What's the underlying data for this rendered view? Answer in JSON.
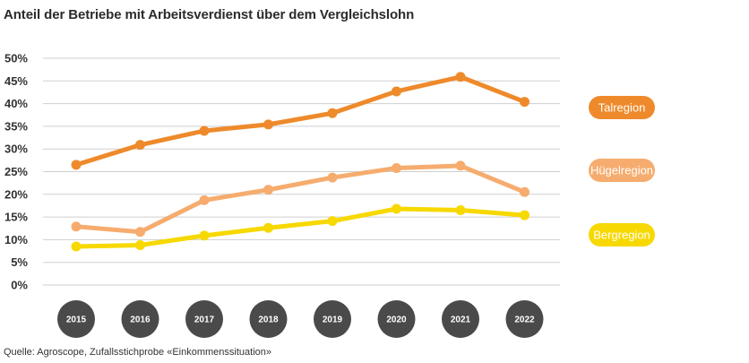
{
  "title": "Anteil der Betriebe mit Arbeitsverdienst über dem Vergleichslohn",
  "source": "Quelle: Agroscope, Zufallsstichprobe «Einkommenssituation»",
  "chart_data": {
    "type": "line",
    "title": "Anteil der Betriebe mit Arbeitsverdienst über dem Vergleichslohn",
    "xlabel": "",
    "ylabel": "",
    "categories": [
      "2015",
      "2016",
      "2017",
      "2018",
      "2019",
      "2020",
      "2021",
      "2022"
    ],
    "ylim": [
      0,
      50
    ],
    "yticks": [
      0,
      5,
      10,
      15,
      20,
      25,
      30,
      35,
      40,
      45,
      50
    ],
    "ytick_labels": [
      "0%",
      "5%",
      "10%",
      "15%",
      "20%",
      "25%",
      "30%",
      "35%",
      "40%",
      "45%",
      "50%"
    ],
    "grid": true,
    "legend_position": "right",
    "series": [
      {
        "name": "Talregion",
        "color": "#EE8A2B",
        "values": [
          26.5,
          30.9,
          34.0,
          35.4,
          37.9,
          42.7,
          45.9,
          40.4
        ]
      },
      {
        "name": "Hügelregion",
        "color": "#F6AC6E",
        "values": [
          12.9,
          11.7,
          18.7,
          21.0,
          23.7,
          25.8,
          26.3,
          20.5
        ]
      },
      {
        "name": "Bergregion",
        "color": "#F7D800",
        "values": [
          8.5,
          8.8,
          10.9,
          12.6,
          14.1,
          16.8,
          16.5,
          15.4
        ]
      }
    ]
  },
  "colors": {
    "grid": "#cfcfcf",
    "year_badge": "#4a4a4a"
  }
}
